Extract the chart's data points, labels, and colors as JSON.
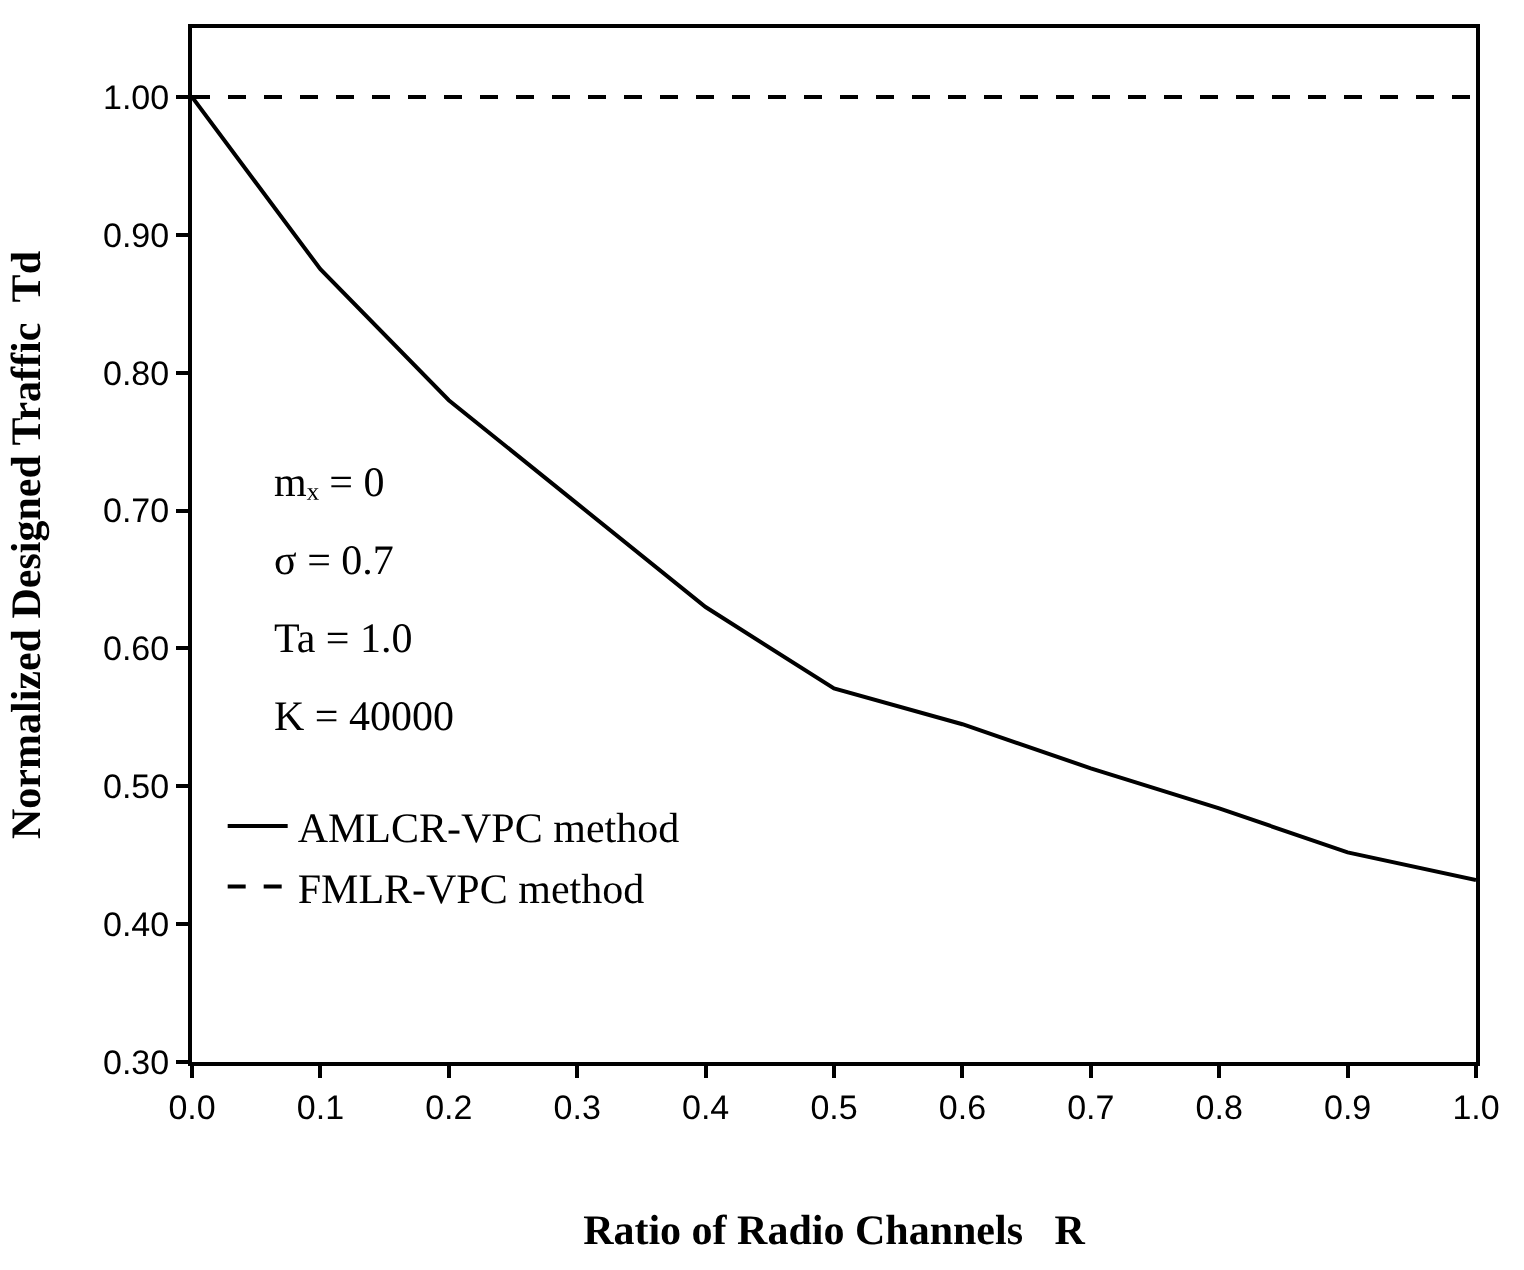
{
  "chart_data": {
    "type": "line",
    "xlabel": "Ratio of Radio Channels   R",
    "ylabel": "Normalized Designed Traffic  Td",
    "x": [
      0,
      0.1,
      0.2,
      0.3,
      0.4,
      0.5,
      0.6,
      0.7,
      0.8,
      0.9,
      1.0
    ],
    "series": [
      {
        "name": "AMLCR-VPC method",
        "color": "#000000",
        "line_style": "solid",
        "values": [
          1.0,
          0.875,
          0.78,
          0.705,
          0.63,
          0.571,
          0.545,
          0.513,
          0.484,
          0.452,
          0.432
        ]
      },
      {
        "name": "FMLR-VPC method",
        "color": "#000000",
        "line_style": "dashed",
        "values": [
          1.0,
          1.0,
          1.0,
          1.0,
          1.0,
          1.0,
          1.0,
          1.0,
          1.0,
          1.0,
          1.0
        ]
      }
    ],
    "annotations": [
      "mₓ = 0",
      "σ = 0.7",
      "Ta = 1.0",
      "K = 40000"
    ],
    "xlim": [
      0,
      1
    ],
    "xticks": [
      {
        "value": 0,
        "label": "0.0"
      },
      0.1,
      0.2,
      0.3,
      0.4,
      0.5,
      0.6,
      0.7,
      0.8,
      0.9,
      {
        "value": 1,
        "label": "1.0"
      }
    ],
    "ylim": [
      0.3,
      1.05
    ],
    "yticks": [
      {
        "value": 0.3,
        "label": "0.30"
      },
      {
        "value": 0.4,
        "label": "0.40"
      },
      {
        "value": 0.5,
        "label": "0.50"
      },
      {
        "value": 0.6,
        "label": "0.60"
      },
      {
        "value": 0.7,
        "label": "0.70"
      },
      {
        "value": 0.8,
        "label": "0.80"
      },
      {
        "value": 0.9,
        "label": "0.90"
      },
      {
        "value": 1.0,
        "label": "1.00"
      }
    ],
    "grid": false,
    "legend": "bottom left",
    "marker": "none"
  }
}
